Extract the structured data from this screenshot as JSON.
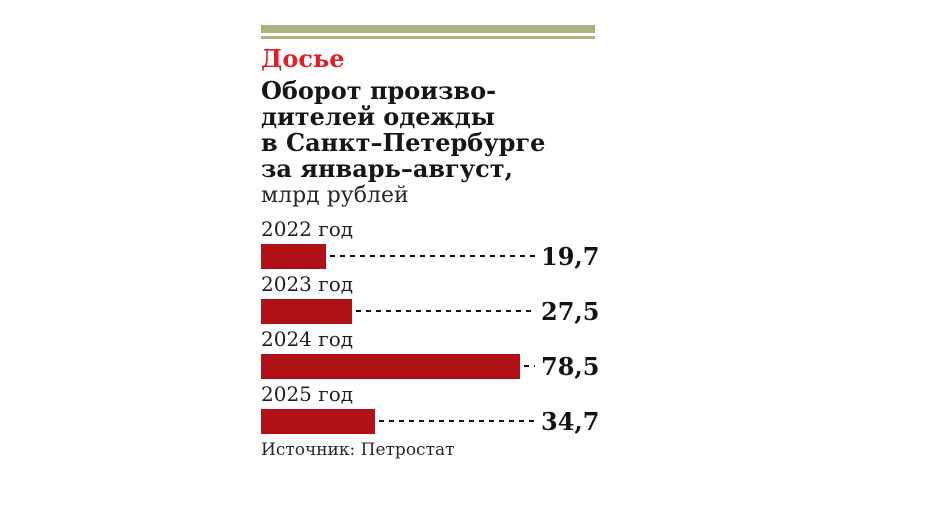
{
  "kicker": {
    "label": "Досье",
    "color": "#e31e24"
  },
  "title": {
    "lines": [
      "Оборот произво-",
      "дителей одежды",
      "в Санкт–Петербурге",
      "за январь–август,"
    ],
    "unit": "млрд рублей"
  },
  "source": {
    "label": "Источник: Петростат"
  },
  "style": {
    "rule_color": "#aeb280",
    "bar_color": "#b01116",
    "accent_red": "#e31e24",
    "leader_color": "#111111",
    "background": "#ffffff"
  },
  "chart_data": {
    "type": "bar",
    "orientation": "horizontal",
    "title": "Оборот производителей одежды в Санкт–Петербурге за январь–август",
    "unit": "млрд рублей",
    "categories": [
      "2022 год",
      "2023 год",
      "2024 год",
      "2025 год"
    ],
    "values": [
      19.7,
      27.5,
      78.5,
      34.7
    ],
    "value_labels": [
      "19,7",
      "27,5",
      "78,5",
      "34,7"
    ],
    "xlim": [
      0,
      78.5
    ],
    "grid": false,
    "legend": false,
    "source": "Источник: Петростат"
  }
}
